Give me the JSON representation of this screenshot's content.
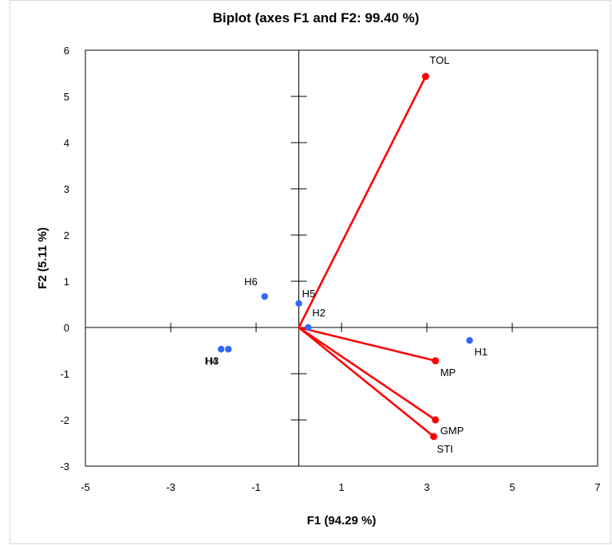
{
  "chart_data": {
    "type": "scatter",
    "title": "Biplot (axes F1 and F2: 99.40 %)",
    "xlabel": "F1 (94.29 %)",
    "ylabel": "F2 (5.11 %)",
    "xlim": [
      -5,
      7
    ],
    "ylim": [
      -3,
      6
    ],
    "xticks": [
      "-5",
      "-3",
      "-1",
      "1",
      "3",
      "5",
      "7"
    ],
    "yticks": [
      "-3",
      "-2",
      "-1",
      "0",
      "1",
      "2",
      "3",
      "4",
      "5",
      "6"
    ],
    "grid": false,
    "observations": {
      "color": "#3366ff",
      "points": [
        {
          "label": "H1",
          "x": 4.0,
          "y": -0.28
        },
        {
          "label": "H2",
          "x": 0.22,
          "y": 0.0
        },
        {
          "label": "H3",
          "x": -1.65,
          "y": -0.47
        },
        {
          "label": "H4",
          "x": -1.82,
          "y": -0.47
        },
        {
          "label": "H5",
          "x": 0.0,
          "y": 0.52
        },
        {
          "label": "H6",
          "x": -0.8,
          "y": 0.67
        }
      ]
    },
    "variables": {
      "color": "#ff0000",
      "vectors": [
        {
          "label": "TOL",
          "x": 2.97,
          "y": 5.43
        },
        {
          "label": "MP",
          "x": 3.2,
          "y": -0.72
        },
        {
          "label": "GMP",
          "x": 3.2,
          "y": -2.0
        },
        {
          "label": "STI",
          "x": 3.16,
          "y": -2.36
        }
      ]
    }
  }
}
